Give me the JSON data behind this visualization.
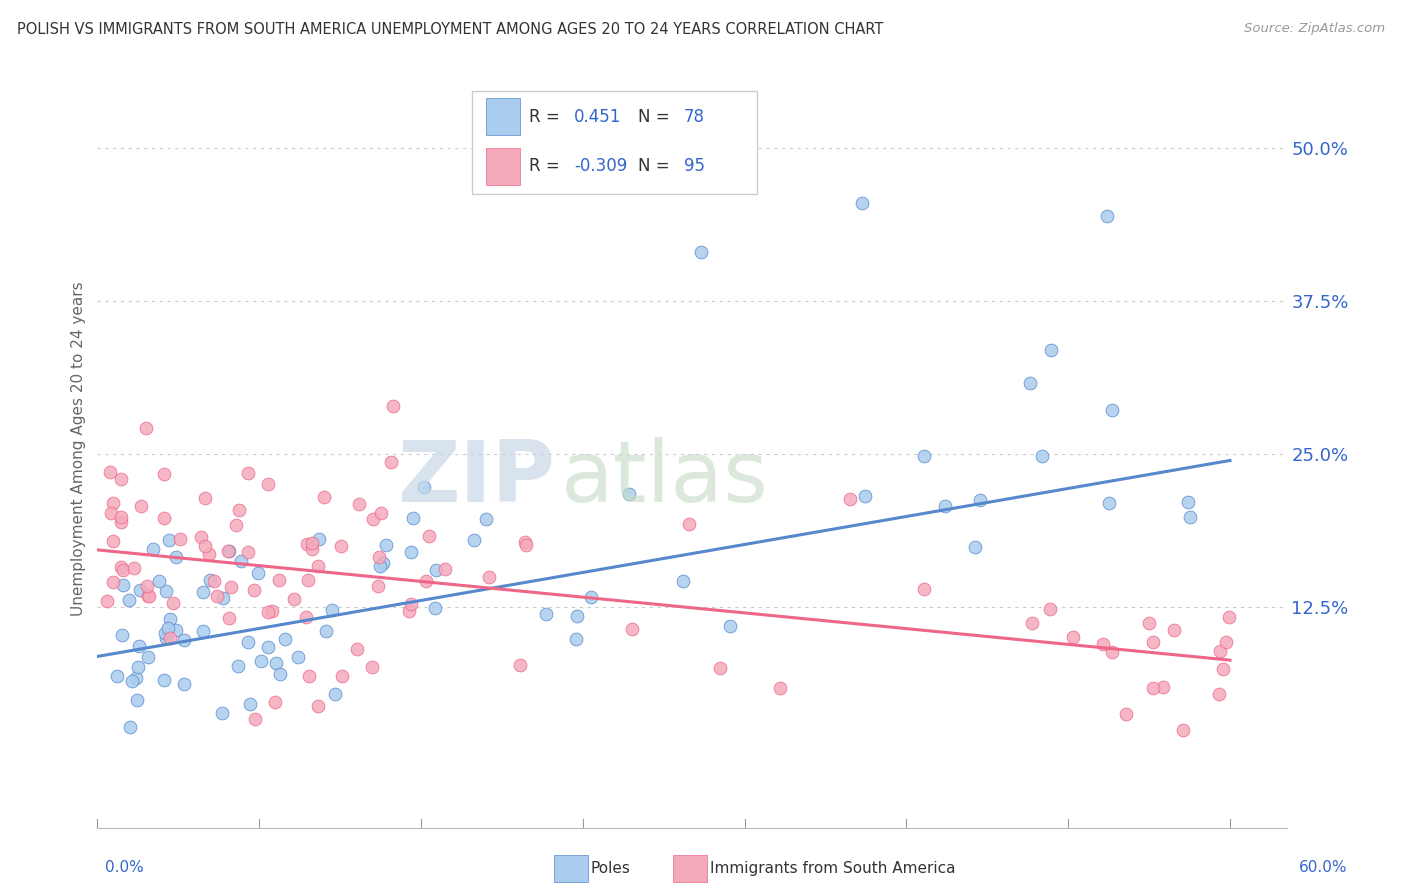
{
  "title": "POLISH VS IMMIGRANTS FROM SOUTH AMERICA UNEMPLOYMENT AMONG AGES 20 TO 24 YEARS CORRELATION CHART",
  "source": "Source: ZipAtlas.com",
  "ylabel": "Unemployment Among Ages 20 to 24 years",
  "yaxis_labels": [
    "50.0%",
    "37.5%",
    "25.0%",
    "12.5%"
  ],
  "yaxis_values": [
    0.5,
    0.375,
    0.25,
    0.125
  ],
  "xlim": [
    0.0,
    0.63
  ],
  "ylim": [
    -0.055,
    0.565
  ],
  "color_blue": "#aaccee",
  "color_pink": "#f4aabb",
  "color_blue_line": "#5588cc",
  "color_pink_line": "#ee6688",
  "color_blue_text": "#3366cc",
  "color_title": "#333333",
  "watermark_zip_color": "#c8d8e8",
  "watermark_atlas_color": "#c8ddc8",
  "poles_line_start_y": 0.085,
  "poles_line_end_y": 0.245,
  "imm_line_start_y": 0.172,
  "imm_line_end_y": 0.082
}
